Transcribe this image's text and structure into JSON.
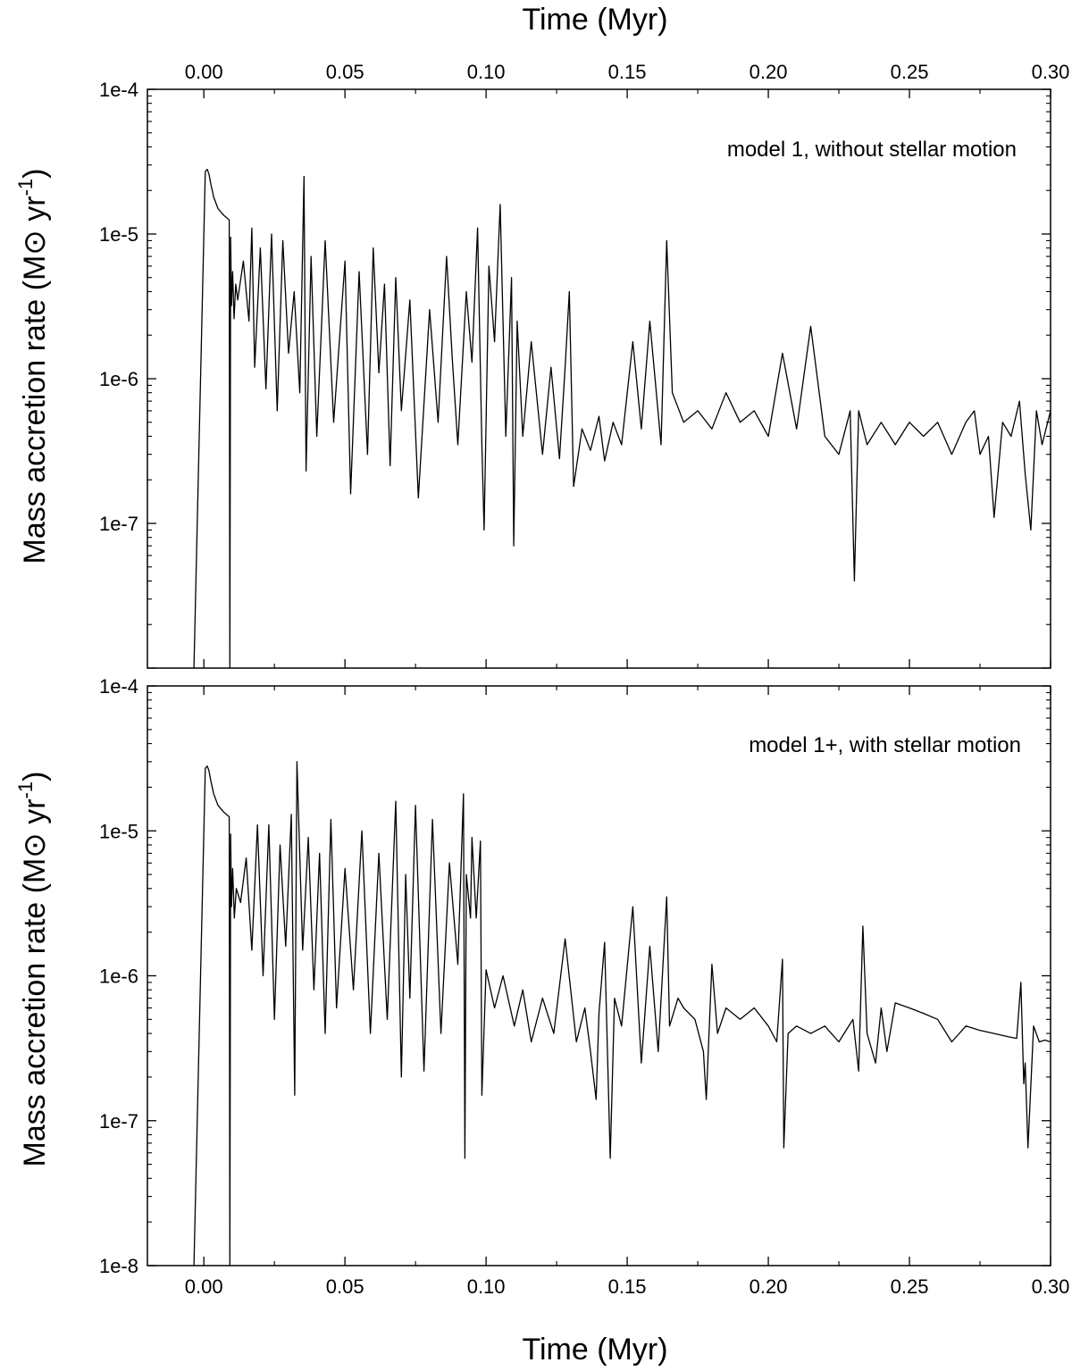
{
  "figure": {
    "top_xlabel": "Time (Myr)",
    "bottom_xlabel": "Time (Myr)",
    "line_color": "#000000"
  },
  "chart_data": [
    {
      "type": "line",
      "annotation": "model 1, without stellar motion",
      "xlabel": "Time (Myr)",
      "ylabel": "Mass accretion rate (M⊙ yr⁻¹)",
      "xlim": [
        -0.02,
        0.3
      ],
      "ylim": [
        1e-08,
        0.0001
      ],
      "yscale": "log",
      "xticks": [
        0.0,
        0.05,
        0.1,
        0.15,
        0.2,
        0.25,
        0.3
      ],
      "xtick_labels": [
        "0.00",
        "0.05",
        "0.10",
        "0.15",
        "0.20",
        "0.25",
        "0.30"
      ],
      "yticks": [
        0.0001,
        1e-05,
        1e-06,
        1e-07
      ],
      "ytick_labels": [
        "1e-4",
        "1e-5",
        "1e-6",
        "1e-7"
      ],
      "series": [
        {
          "x": [
            -0.0035,
            0.0005,
            0.0012,
            0.0018,
            0.0025,
            0.0035,
            0.005,
            0.007,
            0.009,
            0.0092,
            0.0095,
            0.0098,
            0.0102,
            0.0107,
            0.0113,
            0.012,
            0.014,
            0.016,
            0.017,
            0.018,
            0.02,
            0.022,
            0.024,
            0.026,
            0.028,
            0.03,
            0.032,
            0.034,
            0.0355,
            0.0362,
            0.038,
            0.04,
            0.043,
            0.046,
            0.05,
            0.052,
            0.055,
            0.058,
            0.06,
            0.062,
            0.064,
            0.066,
            0.068,
            0.07,
            0.073,
            0.076,
            0.08,
            0.083,
            0.086,
            0.088,
            0.09,
            0.093,
            0.095,
            0.097,
            0.0985,
            0.0993,
            0.101,
            0.103,
            0.105,
            0.107,
            0.109,
            0.1098,
            0.111,
            0.113,
            0.116,
            0.12,
            0.123,
            0.126,
            0.128,
            0.1295,
            0.131,
            0.134,
            0.137,
            0.14,
            0.142,
            0.145,
            0.148,
            0.152,
            0.155,
            0.158,
            0.162,
            0.164,
            0.166,
            0.17,
            0.175,
            0.18,
            0.185,
            0.19,
            0.195,
            0.2,
            0.205,
            0.21,
            0.215,
            0.22,
            0.225,
            0.229,
            0.2305,
            0.232,
            0.235,
            0.24,
            0.245,
            0.25,
            0.255,
            0.26,
            0.265,
            0.27,
            0.273,
            0.275,
            0.278,
            0.28,
            0.283,
            0.286,
            0.289,
            0.291,
            0.293,
            0.295,
            0.297,
            0.3
          ],
          "y": [
            1e-08,
            2.7e-05,
            2.8e-05,
            2.6e-05,
            2.2e-05,
            1.8e-05,
            1.5e-05,
            1.35e-05,
            1.25e-05,
            1e-08,
            9.5e-06,
            3.2e-06,
            5.5e-06,
            2.6e-06,
            4.5e-06,
            3.5e-06,
            6.5e-06,
            2.5e-06,
            1.1e-05,
            1.2e-06,
            8e-06,
            8.5e-07,
            1e-05,
            6e-07,
            9e-06,
            1.5e-06,
            4e-06,
            8e-07,
            2.5e-05,
            2.3e-07,
            7e-06,
            4e-07,
            9e-06,
            5e-07,
            6.5e-06,
            1.6e-07,
            5.5e-06,
            3e-07,
            8e-06,
            1.1e-06,
            4.5e-06,
            2.5e-07,
            5e-06,
            6e-07,
            3.5e-06,
            1.5e-07,
            3e-06,
            5e-07,
            7e-06,
            1.4e-06,
            3.5e-07,
            4e-06,
            1.3e-06,
            1.1e-05,
            3.5e-07,
            9e-08,
            6e-06,
            1.8e-06,
            1.6e-05,
            4e-07,
            5e-06,
            7e-08,
            2.5e-06,
            4e-07,
            1.8e-06,
            3e-07,
            1.2e-06,
            2.8e-07,
            1.2e-06,
            4e-06,
            1.8e-07,
            4.5e-07,
            3.2e-07,
            5.5e-07,
            2.7e-07,
            5e-07,
            3.5e-07,
            1.8e-06,
            4.5e-07,
            2.5e-06,
            3.5e-07,
            9e-06,
            8e-07,
            5e-07,
            6e-07,
            4.5e-07,
            8e-07,
            5e-07,
            6e-07,
            4e-07,
            1.5e-06,
            4.5e-07,
            2.3e-06,
            4e-07,
            3e-07,
            6e-07,
            4e-08,
            6e-07,
            3.5e-07,
            5e-07,
            3.5e-07,
            5e-07,
            4e-07,
            5e-07,
            3e-07,
            5e-07,
            6e-07,
            3e-07,
            4e-07,
            1.1e-07,
            5e-07,
            4e-07,
            7e-07,
            2.2e-07,
            9e-08,
            6e-07,
            3.5e-07,
            6e-07
          ]
        }
      ]
    },
    {
      "type": "line",
      "annotation": "model 1+, with stellar motion",
      "xlabel": "Time (Myr)",
      "ylabel": "Mass accretion rate (M⊙ yr⁻¹)",
      "xlim": [
        -0.02,
        0.3
      ],
      "ylim": [
        1e-08,
        0.0001
      ],
      "yscale": "log",
      "xticks": [
        0.0,
        0.05,
        0.1,
        0.15,
        0.2,
        0.25,
        0.3
      ],
      "xtick_labels": [
        "0.00",
        "0.05",
        "0.10",
        "0.15",
        "0.20",
        "0.25",
        "0.30"
      ],
      "yticks": [
        0.0001,
        1e-05,
        1e-06,
        1e-07,
        1e-08
      ],
      "ytick_labels": [
        "1e-4",
        "1e-5",
        "1e-6",
        "1e-7",
        "1e-8"
      ],
      "series": [
        {
          "x": [
            -0.0035,
            0.0005,
            0.0012,
            0.0018,
            0.0025,
            0.0035,
            0.005,
            0.007,
            0.009,
            0.0092,
            0.0095,
            0.0098,
            0.0102,
            0.0108,
            0.0115,
            0.013,
            0.015,
            0.017,
            0.019,
            0.021,
            0.023,
            0.025,
            0.027,
            0.029,
            0.031,
            0.0322,
            0.033,
            0.035,
            0.037,
            0.039,
            0.041,
            0.043,
            0.045,
            0.047,
            0.05,
            0.053,
            0.056,
            0.059,
            0.062,
            0.065,
            0.068,
            0.07,
            0.0715,
            0.073,
            0.075,
            0.078,
            0.081,
            0.084,
            0.087,
            0.09,
            0.092,
            0.0925,
            0.093,
            0.0945,
            0.095,
            0.0965,
            0.098,
            0.0985,
            0.1,
            0.103,
            0.106,
            0.11,
            0.113,
            0.116,
            0.12,
            0.124,
            0.128,
            0.132,
            0.135,
            0.137,
            0.139,
            0.14,
            0.142,
            0.144,
            0.1455,
            0.148,
            0.152,
            0.155,
            0.158,
            0.161,
            0.164,
            0.165,
            0.168,
            0.17,
            0.174,
            0.177,
            0.178,
            0.18,
            0.182,
            0.185,
            0.19,
            0.195,
            0.2,
            0.203,
            0.205,
            0.2055,
            0.207,
            0.21,
            0.215,
            0.22,
            0.225,
            0.23,
            0.232,
            0.2335,
            0.235,
            0.238,
            0.24,
            0.242,
            0.245,
            0.25,
            0.255,
            0.26,
            0.265,
            0.27,
            0.275,
            0.28,
            0.285,
            0.288,
            0.2895,
            0.2905,
            0.291,
            0.292,
            0.294,
            0.296,
            0.298,
            0.3
          ],
          "y": [
            1e-08,
            2.7e-05,
            2.8e-05,
            2.6e-05,
            2.2e-05,
            1.8e-05,
            1.5e-05,
            1.35e-05,
            1.25e-05,
            1e-08,
            9.5e-06,
            3e-06,
            5.5e-06,
            2.5e-06,
            4e-06,
            3.2e-06,
            6.5e-06,
            1.5e-06,
            1.1e-05,
            1e-06,
            1.1e-05,
            5e-07,
            8e-06,
            1.6e-06,
            1.3e-05,
            1.5e-07,
            3e-05,
            1.5e-06,
            9e-06,
            8e-07,
            7e-06,
            4e-07,
            1.2e-05,
            6e-07,
            5.5e-06,
            8e-07,
            1e-05,
            4e-07,
            7e-06,
            5e-07,
            1.6e-05,
            2e-07,
            5e-06,
            7e-07,
            1.5e-05,
            2.2e-07,
            1.2e-05,
            4e-07,
            6e-06,
            1.2e-06,
            1.8e-05,
            5.5e-08,
            5e-06,
            2.5e-06,
            9e-06,
            2.5e-06,
            8.5e-06,
            1.5e-07,
            1.1e-06,
            6e-07,
            1e-06,
            4.5e-07,
            8e-07,
            3.5e-07,
            7e-07,
            4e-07,
            1.8e-06,
            3.5e-07,
            6e-07,
            3e-07,
            1.4e-07,
            5.5e-07,
            1.7e-06,
            5.5e-08,
            7e-07,
            4.5e-07,
            3e-06,
            2.5e-07,
            1.6e-06,
            3e-07,
            3.5e-06,
            4.5e-07,
            7e-07,
            6e-07,
            5e-07,
            3e-07,
            1.4e-07,
            1.2e-06,
            4e-07,
            6e-07,
            5e-07,
            6e-07,
            4.5e-07,
            3.5e-07,
            1.3e-06,
            6.5e-08,
            4e-07,
            4.5e-07,
            4e-07,
            4.5e-07,
            3.5e-07,
            5e-07,
            2.2e-07,
            2.2e-06,
            4e-07,
            2.5e-07,
            6e-07,
            3e-07,
            6.5e-07,
            6e-07,
            5.5e-07,
            5e-07,
            3.5e-07,
            4.5e-07,
            4.2e-07,
            4e-07,
            3.8e-07,
            3.7e-07,
            9e-07,
            1.8e-07,
            2.5e-07,
            6.5e-08,
            4.5e-07,
            3.5e-07,
            3.6e-07,
            3.5e-07
          ]
        }
      ]
    }
  ]
}
